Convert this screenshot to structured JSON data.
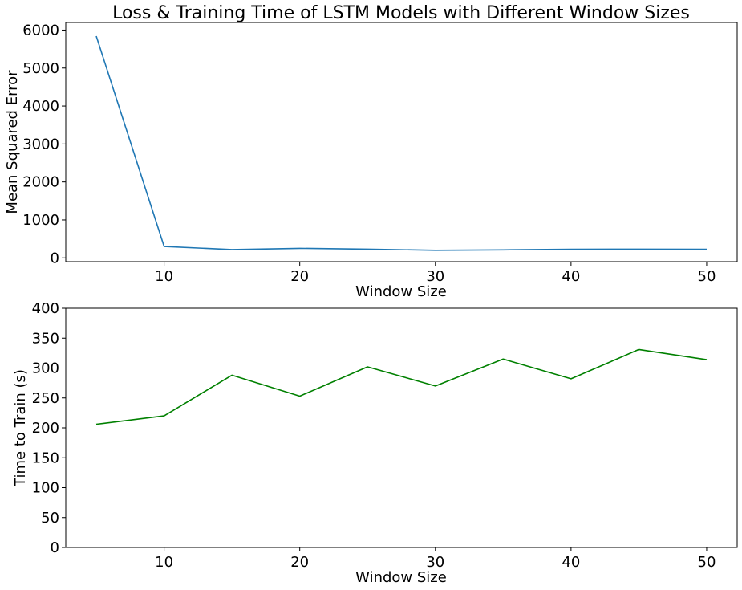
{
  "title": "Loss & Training Time of LSTM Models with Different Window Sizes",
  "chart_data": [
    {
      "type": "line",
      "xlabel": "Window Size",
      "ylabel": "Mean Squared Error",
      "xlim": [
        2.75,
        52.25
      ],
      "ylim": [
        -100,
        6200
      ],
      "xticks": [
        10,
        20,
        30,
        40,
        50
      ],
      "yticks": [
        0,
        1000,
        2000,
        3000,
        4000,
        5000,
        6000
      ],
      "grid": false,
      "series": [
        {
          "color": "#1f77b4",
          "x": [
            5,
            10,
            15,
            20,
            25,
            30,
            35,
            40,
            45,
            50
          ],
          "y": [
            5840,
            300,
            220,
            250,
            230,
            200,
            210,
            225,
            230,
            225
          ]
        }
      ]
    },
    {
      "type": "line",
      "xlabel": "Window Size",
      "ylabel": "Time to Train (s)",
      "xlim": [
        2.75,
        52.25
      ],
      "ylim": [
        0,
        400
      ],
      "xticks": [
        10,
        20,
        30,
        40,
        50
      ],
      "yticks": [
        0,
        50,
        100,
        150,
        200,
        250,
        300,
        350,
        400
      ],
      "grid": false,
      "series": [
        {
          "color": "#008000",
          "x": [
            5,
            10,
            15,
            20,
            25,
            30,
            35,
            40,
            45,
            50
          ],
          "y": [
            206,
            220,
            288,
            253,
            302,
            270,
            315,
            282,
            331,
            314
          ]
        }
      ]
    }
  ]
}
